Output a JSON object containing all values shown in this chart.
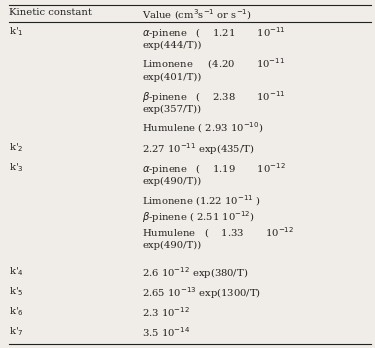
{
  "col1_header": "Kinetic constant",
  "col2_header": "Value (cm$^3$s$^{-1}$ or s$^{-1}$)",
  "bg_color": "#f0ede8",
  "line_color": "#222222",
  "font_size": 7.2,
  "figsize": [
    3.75,
    3.48
  ],
  "dpi": 100,
  "rows": [
    {
      "key": "k'$_1$",
      "show_key_at_line": 0,
      "value_lines": [
        "$\\alpha$-pinene   (    1.21       10$^{-11}$",
        "exp(444/T))",
        "Limonene     (4.20       10$^{-11}$",
        "exp(401/T))",
        "$\\beta$-pinene   (    2.38       10$^{-11}$",
        "exp(357/T))",
        "Humulene ( 2.93 10$^{-10}$)"
      ]
    },
    {
      "key": "k'$_2$",
      "show_key_at_line": 0,
      "value_lines": [
        "2.27 10$^{-11}$ exp(435/T)"
      ]
    },
    {
      "key": "k'$_3$",
      "show_key_at_line": 0,
      "value_lines": [
        "$\\alpha$-pinene   (    1.19       10$^{-12}$",
        "exp(490/T))",
        "Limonene (1.22 10$^{-11}$ )",
        "$\\beta$-pinene ( 2.51 10$^{-12}$)",
        "Humulene   (    1.33       10$^{-12}$",
        "exp(490/T))"
      ]
    },
    {
      "key": "k'$_4$",
      "show_key_at_line": 0,
      "value_lines": [
        "2.6 10$^{-12}$ exp(380/T)"
      ]
    },
    {
      "key": "k'$_5$",
      "show_key_at_line": 0,
      "value_lines": [
        "2.65 10$^{-13}$ exp(1300/T)"
      ]
    },
    {
      "key": "k'$_6$",
      "show_key_at_line": 0,
      "value_lines": [
        "2.3 10$^{-12}$"
      ]
    },
    {
      "key": "k'$_7$",
      "show_key_at_line": 0,
      "value_lines": [
        "3.5 10$^{-14}$"
      ]
    }
  ]
}
